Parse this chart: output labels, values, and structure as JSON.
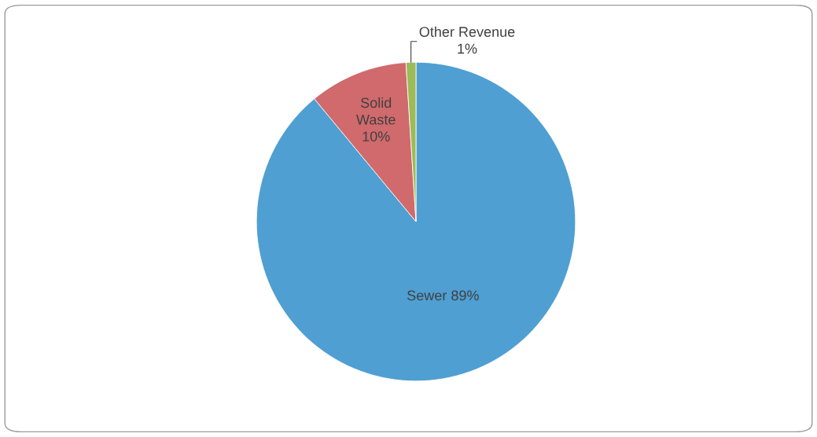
{
  "chart_data": {
    "type": "pie",
    "categories": [
      "Sewer",
      "Solid Waste",
      "Other Revenue"
    ],
    "values": [
      89,
      10,
      1
    ],
    "colors": [
      "#4f9fd2",
      "#d06a6c",
      "#9cbb59"
    ],
    "value_labels": [
      "89%",
      "10%",
      "1%"
    ],
    "legend": false
  }
}
